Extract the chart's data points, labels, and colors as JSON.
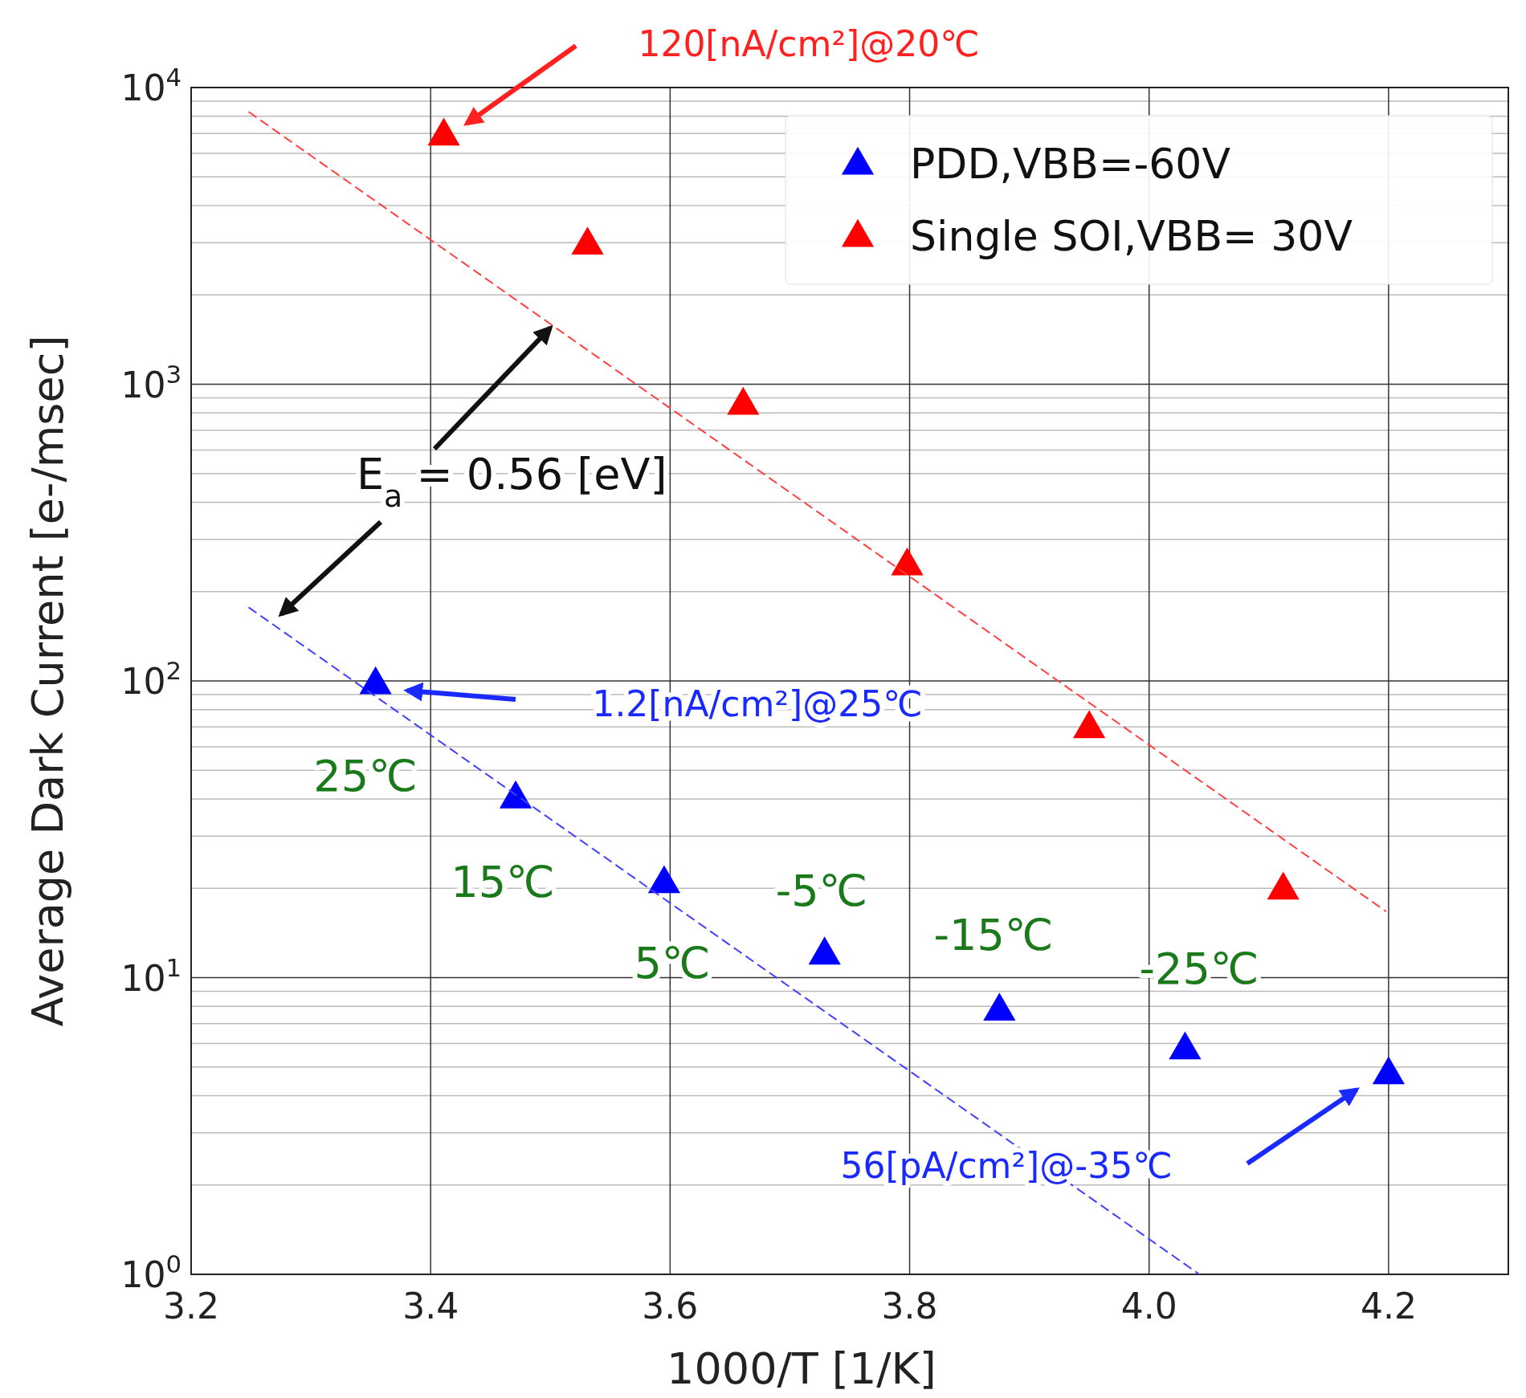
{
  "chart_data": {
    "type": "scatter",
    "xlabel": "1000/T [1/K]",
    "ylabel": "Average Dark Current [e-/msec]",
    "xlim": [
      3.2,
      4.3
    ],
    "xticks": [
      {
        "value": 3.2,
        "label": "3.2"
      },
      {
        "value": 3.4,
        "label": "3.4"
      },
      {
        "value": 3.6,
        "label": "3.6"
      },
      {
        "value": 3.8,
        "label": "3.8"
      },
      {
        "value": 4.0,
        "label": "4.0"
      },
      {
        "value": 4.2,
        "label": "4.2"
      }
    ],
    "ylim": [
      1,
      10000
    ],
    "yticks": [
      {
        "value": 1,
        "label": "10$^{0}$"
      },
      {
        "value": 10,
        "label": "10$^{1}$"
      },
      {
        "value": 100,
        "label": "10$^{2}$"
      },
      {
        "value": 1000,
        "label": "10$^{3}$"
      },
      {
        "value": 10000,
        "label": "10$^{4}$"
      }
    ],
    "log": "y",
    "grid": true,
    "legend": "top right",
    "marker": "triangle",
    "series": [
      {
        "name": "PDD,VBB=-60V",
        "color": "#0000ff",
        "x": [
          3.354,
          3.471,
          3.595,
          3.729,
          3.875,
          4.03,
          4.2
        ],
        "values": [
          97,
          40,
          20.7,
          11.9,
          7.7,
          5.7,
          4.7
        ]
      },
      {
        "name": "Single SOI,VBB= 30V",
        "color": "#ff0000",
        "x": [
          3.411,
          3.531,
          3.661,
          3.798,
          3.95,
          4.112
        ],
        "values": [
          6850,
          2940,
          848,
          244,
          69,
          19.7
        ]
      },
      {
        "type": "line",
        "color": "#ff4040",
        "line_style": "dashed",
        "marker": "none",
        "x": [
          3.248,
          4.198
        ],
        "values": [
          8280,
          16.7
        ]
      },
      {
        "type": "line",
        "color": "#4040ff",
        "line_style": "dashed",
        "marker": "none",
        "x": [
          3.248,
          4.042
        ],
        "values": [
          177,
          1
        ]
      }
    ],
    "annotations": [
      "120[nA/cm²]@20℃",
      "1.2[nA/cm²]@25℃",
      "56[pA/cm²]@-35℃",
      {
        "text": "E$_{a}$ = 0.56 [eV]",
        "x": 3.5,
        "y": 1550
      },
      "25℃",
      "15℃",
      "5℃",
      "-5℃",
      "-15℃",
      "-25℃"
    ]
  }
}
